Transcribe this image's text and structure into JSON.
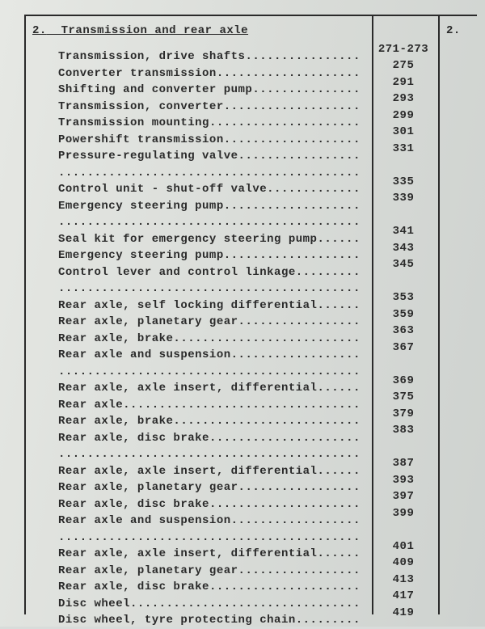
{
  "section": {
    "number": "2.",
    "title": "Transmission and rear axle"
  },
  "stub": "2.",
  "entries": [
    {
      "label": "Transmission, drive shafts",
      "page": "271-273"
    },
    {
      "label": "Converter transmission",
      "page": "275"
    },
    {
      "label": "Shifting and converter pump",
      "page": "291"
    },
    {
      "label": "Transmission, converter",
      "page": "293"
    },
    {
      "label": "Transmission mounting",
      "page": "299"
    },
    {
      "label": "Powershift transmission",
      "page": "301"
    },
    {
      "label": "Pressure-regulating valve",
      "page": "331"
    },
    {
      "label": "",
      "page": ""
    },
    {
      "label": "Control unit - shut-off valve",
      "page": "335"
    },
    {
      "label": "Emergency steering pump",
      "page": "339"
    },
    {
      "label": "",
      "page": ""
    },
    {
      "label": "Seal kit for emergency steering pump",
      "page": "341"
    },
    {
      "label": "Emergency steering pump",
      "page": "343"
    },
    {
      "label": "Control lever and control linkage",
      "page": "345"
    },
    {
      "label": "",
      "page": ""
    },
    {
      "label": "Rear axle, self locking differential",
      "page": "353"
    },
    {
      "label": "Rear axle, planetary gear",
      "page": "359"
    },
    {
      "label": "Rear axle, brake",
      "page": "363"
    },
    {
      "label": "Rear axle and suspension",
      "page": "367"
    },
    {
      "label": "",
      "page": ""
    },
    {
      "label": "Rear axle, axle insert, differential",
      "page": "369"
    },
    {
      "label": "Rear axle",
      "page": "375"
    },
    {
      "label": "Rear axle, brake",
      "page": "379"
    },
    {
      "label": "Rear axle, disc brake",
      "page": "383"
    },
    {
      "label": "",
      "page": ""
    },
    {
      "label": "Rear axle, axle insert, differential",
      "page": "387"
    },
    {
      "label": "Rear axle, planetary gear",
      "page": "393"
    },
    {
      "label": "Rear axle, disc brake",
      "page": "397"
    },
    {
      "label": "Rear axle and suspension",
      "page": "399"
    },
    {
      "label": "",
      "page": ""
    },
    {
      "label": "Rear axle, axle insert, differential",
      "page": "401"
    },
    {
      "label": "Rear axle, planetary gear",
      "page": "409"
    },
    {
      "label": "Rear axle, disc brake",
      "page": "413"
    },
    {
      "label": "Disc wheel",
      "page": "417"
    },
    {
      "label": "Disc wheel, tyre protecting chain",
      "page": "419"
    }
  ],
  "layout": {
    "line_width_chars": 42,
    "num_spacer_lines": 1
  }
}
